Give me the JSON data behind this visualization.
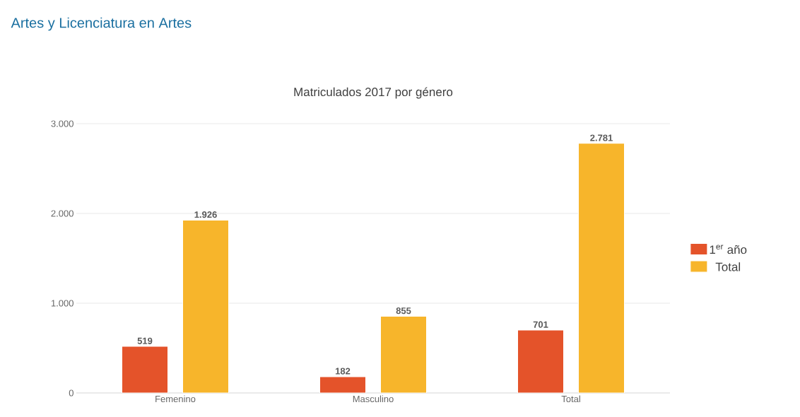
{
  "chart_data": {
    "type": "bar",
    "title": "Artes y Licenciatura en Artes",
    "subtitle": "Matriculados 2017 por género",
    "categories": [
      "Femenino",
      "Masculino",
      "Total"
    ],
    "series": [
      {
        "name": "1$^{er}$ año",
        "color": "#e4532a",
        "values": [
          519,
          182,
          701
        ],
        "value_labels": [
          "519",
          "182",
          "701"
        ]
      },
      {
        "name": "Total",
        "color": "#f7b52b",
        "values": [
          1926,
          855,
          2781
        ],
        "value_labels": [
          "1.926",
          "855",
          "2.781"
        ]
      }
    ],
    "ylim": [
      0,
      3000
    ],
    "yticks": [
      {
        "value": 0,
        "label": "0"
      },
      {
        "value": 1000,
        "label": "1.000"
      },
      {
        "value": 2000,
        "label": "2.000"
      },
      {
        "value": 3000,
        "label": "3.000"
      }
    ],
    "grid": "y",
    "legend": "right"
  }
}
